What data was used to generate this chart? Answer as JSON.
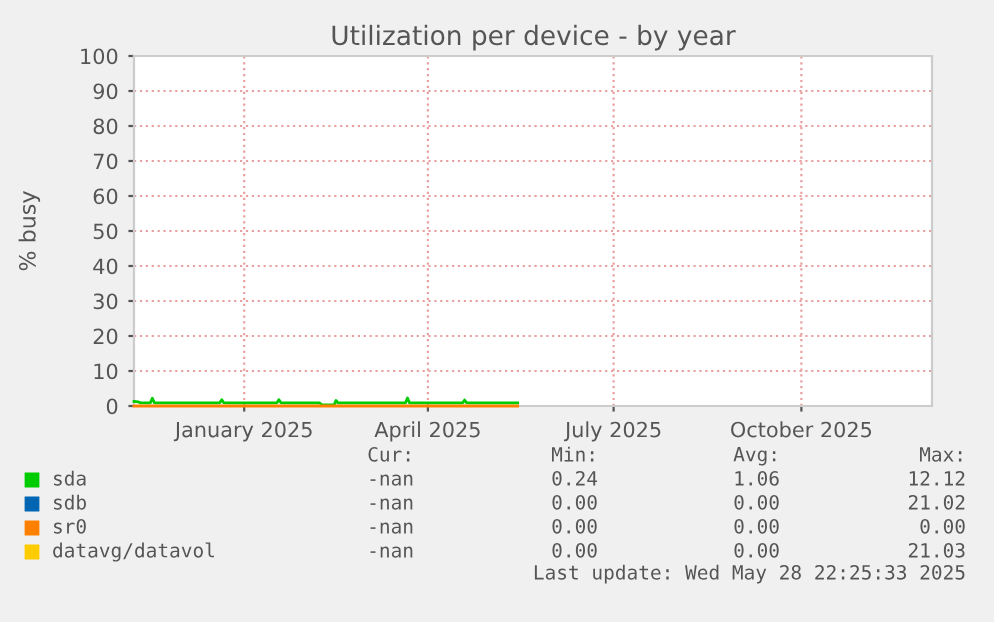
{
  "chart_data": {
    "type": "line",
    "title": "Utilization per device - by year",
    "ylabel": "% busy",
    "xlim": [
      "2024-11-08",
      "2025-12-04"
    ],
    "xticks": [
      {
        "value": "2025-01-01",
        "label": "January 2025"
      },
      {
        "value": "2025-04-01",
        "label": "April 2025"
      },
      {
        "value": "2025-07-01",
        "label": "July 2025"
      },
      {
        "value": "2025-10-01",
        "label": "October 2025"
      }
    ],
    "ylim": [
      0,
      100
    ],
    "yticks": [
      0,
      10,
      20,
      30,
      40,
      50,
      60,
      70,
      80,
      90,
      100
    ],
    "grid": true,
    "legend": "bottom",
    "series": [
      {
        "name": "sda",
        "color": "#00cc00",
        "x": [
          "2024-11-08",
          "2024-11-10",
          "2024-11-11",
          "2024-11-16",
          "2024-11-17",
          "2024-11-18",
          "2024-12-20",
          "2024-12-21",
          "2024-12-22",
          "2025-01-17",
          "2025-01-18",
          "2025-01-19",
          "2025-02-07",
          "2025-02-08",
          "2025-02-14",
          "2025-02-15",
          "2025-02-16",
          "2025-03-21",
          "2025-03-22",
          "2025-03-23",
          "2025-04-18",
          "2025-04-19",
          "2025-04-20",
          "2025-05-15"
        ],
        "values": [
          1.3,
          1.2,
          0.9,
          0.9,
          2.2,
          0.9,
          0.9,
          1.8,
          0.9,
          0.9,
          1.8,
          0.9,
          0.9,
          0.3,
          0.3,
          1.6,
          0.9,
          0.9,
          2.3,
          0.9,
          0.9,
          1.7,
          0.9,
          0.9
        ]
      },
      {
        "name": "sdb",
        "color": "#0066b3"
      },
      {
        "name": "sr0",
        "color": "#ff8000",
        "x": [
          "2024-11-08",
          "2025-05-15"
        ],
        "values": [
          0,
          0
        ]
      },
      {
        "name": "datavg/datavol",
        "color": "#ffcc00"
      }
    ],
    "annotations": [
      "Cur:",
      "Min:",
      "Avg:",
      "Max:",
      "-nan",
      "0.24",
      "1.06",
      "12.12",
      "-nan",
      "0.00",
      "0.00",
      "21.02",
      "-nan",
      "0.00",
      "0.00",
      "0.00",
      "-nan",
      "0.00",
      "0.00",
      "21.03",
      "Last update: Wed May 28 22:25:33 2025"
    ]
  }
}
